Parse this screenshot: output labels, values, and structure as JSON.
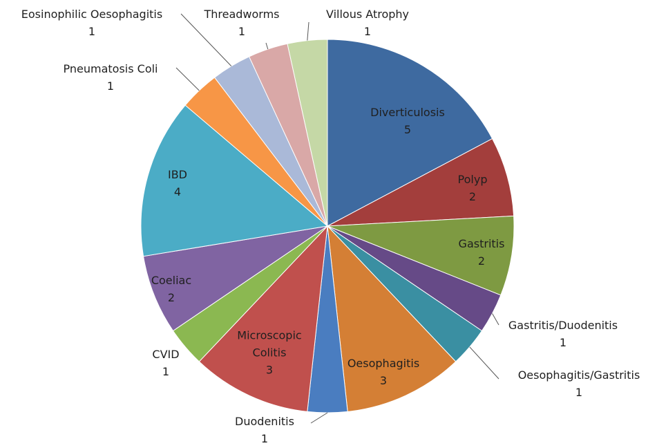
{
  "chart_data": {
    "type": "pie",
    "categories": [
      "Diverticulosis",
      "Polyp",
      "Gastritis",
      "Gastritis/Duodenitis",
      "Oesophagitis/Gastritis",
      "Oesophagitis",
      "Duodenitis",
      "Microscopic Colitis",
      "CVID",
      "Coeliac",
      "IBD",
      "Pneumatosis Coli",
      "Eosinophilic Oesophagitis",
      "Threadworms",
      "Villous Atrophy"
    ],
    "values": [
      5,
      2,
      2,
      1,
      1,
      3,
      1,
      3,
      1,
      2,
      4,
      1,
      1,
      1,
      1
    ],
    "colors": [
      "#3e6aa0",
      "#a33e3c",
      "#7e9a42",
      "#664a87",
      "#3a8fa2",
      "#d47f35",
      "#4a7dc0",
      "#c0504d",
      "#8bb851",
      "#8064a2",
      "#4bacc6",
      "#f79646",
      "#aab9d8",
      "#d9a8a7",
      "#c5d8a6"
    ]
  }
}
